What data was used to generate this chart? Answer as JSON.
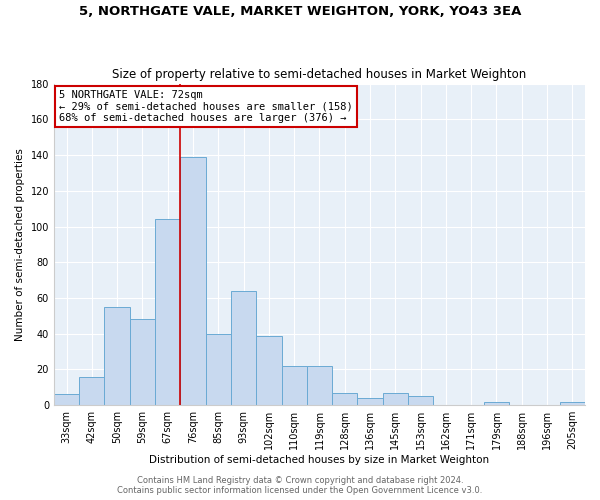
{
  "title": "5, NORTHGATE VALE, MARKET WEIGHTON, YORK, YO43 3EA",
  "subtitle": "Size of property relative to semi-detached houses in Market Weighton",
  "xlabel": "Distribution of semi-detached houses by size in Market Weighton",
  "ylabel": "Number of semi-detached properties",
  "categories": [
    "33sqm",
    "42sqm",
    "50sqm",
    "59sqm",
    "67sqm",
    "76sqm",
    "85sqm",
    "93sqm",
    "102sqm",
    "110sqm",
    "119sqm",
    "128sqm",
    "136sqm",
    "145sqm",
    "153sqm",
    "162sqm",
    "171sqm",
    "179sqm",
    "188sqm",
    "196sqm",
    "205sqm"
  ],
  "values": [
    6,
    16,
    55,
    48,
    104,
    139,
    40,
    64,
    39,
    22,
    22,
    7,
    4,
    7,
    5,
    0,
    0,
    2,
    0,
    0,
    2
  ],
  "bar_color": "#c8d9ef",
  "bar_edge_color": "#6aaad4",
  "vline_x_idx": 5,
  "vline_color": "#cc0000",
  "annotation_text": "5 NORTHGATE VALE: 72sqm\n← 29% of semi-detached houses are smaller (158)\n68% of semi-detached houses are larger (376) →",
  "annotation_box_color": "#ffffff",
  "annotation_box_edge": "#cc0000",
  "ylim": [
    0,
    180
  ],
  "yticks": [
    0,
    20,
    40,
    60,
    80,
    100,
    120,
    140,
    160,
    180
  ],
  "footer1": "Contains HM Land Registry data © Crown copyright and database right 2024.",
  "footer2": "Contains public sector information licensed under the Open Government Licence v3.0.",
  "bg_color": "#ffffff",
  "plot_bg_color": "#e8f0f8",
  "title_fontsize": 9.5,
  "subtitle_fontsize": 8.5,
  "tick_fontsize": 7,
  "label_fontsize": 7.5,
  "annotation_fontsize": 7.5,
  "footer_fontsize": 6
}
